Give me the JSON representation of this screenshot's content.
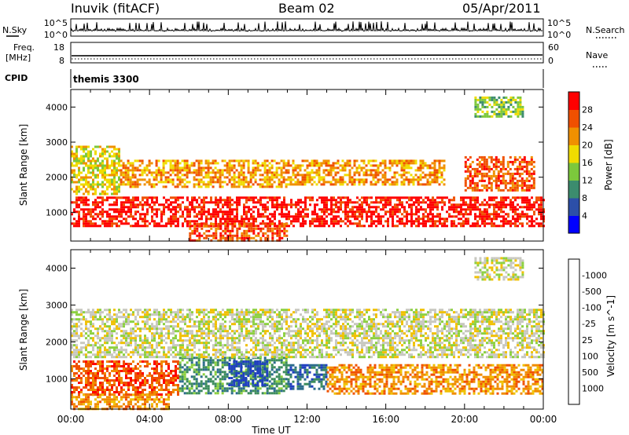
{
  "header": {
    "station": "Inuvik (fitACF)",
    "beam": "Beam 02",
    "date": "05/Apr/2011"
  },
  "top_panels": {
    "nsky_label": "N.Sky",
    "nsky_ticks": [
      "10^5",
      "10^0"
    ],
    "nsearch_label": "N.Search",
    "nsearch_ticks": [
      "10^5",
      "10^0"
    ],
    "freq_label": "Freq.",
    "freq_unit": "[MHz]",
    "freq_ticks": [
      "18",
      "8"
    ],
    "nave_label": "Nave",
    "nave_ticks": [
      "60",
      "0"
    ],
    "cpid_label": "CPID",
    "cpid_value": "themis 3300"
  },
  "x_axis": {
    "label": "Time UT",
    "ticks": [
      "00:00",
      "04:00",
      "08:00",
      "12:00",
      "16:00",
      "20:00",
      "00:00"
    ]
  },
  "chart_data": [
    {
      "type": "heatmap",
      "panel": "power",
      "xlabel": "Time UT",
      "ylabel": "Slant Range [km]",
      "xlim": [
        0,
        24
      ],
      "ylim": [
        180,
        4500
      ],
      "y_ticks": [
        1000,
        2000,
        3000,
        4000
      ],
      "colorbar_label": "Power [dB]",
      "colorbar_ticks": [
        "4",
        "8",
        "12",
        "16",
        "20",
        "24",
        "28"
      ],
      "colorbar_colors": [
        "#0000ff",
        "#2c4fa8",
        "#3c8c6e",
        "#7cc83c",
        "#f0dc00",
        "#f09000",
        "#f05000",
        "#ff0000"
      ],
      "bands": [
        {
          "t0": 0.0,
          "t1": 24.0,
          "r0": 600,
          "r1": 1450,
          "level": 7
        },
        {
          "t0": 0.0,
          "t1": 2.5,
          "r0": 1500,
          "r1": 2900,
          "level": 4
        },
        {
          "t0": 2.5,
          "t1": 11.0,
          "r0": 1700,
          "r1": 2500,
          "level": 5
        },
        {
          "t0": 11.0,
          "t1": 19.0,
          "r0": 1800,
          "r1": 2500,
          "level": 5
        },
        {
          "t0": 20.0,
          "t1": 23.5,
          "r0": 1600,
          "r1": 2600,
          "level": 6
        },
        {
          "t0": 6.0,
          "t1": 11.0,
          "r0": 200,
          "r1": 700,
          "level": 6
        },
        {
          "t0": 20.5,
          "t1": 23.0,
          "r0": 3700,
          "r1": 4300,
          "level": 3
        }
      ]
    },
    {
      "type": "heatmap",
      "panel": "velocity",
      "xlabel": "Time UT",
      "ylabel": "Slant Range [km]",
      "xlim": [
        0,
        24
      ],
      "ylim": [
        180,
        4500
      ],
      "y_ticks": [
        1000,
        2000,
        3000,
        4000
      ],
      "colorbar_label": "Velocity [m s^-1]",
      "colorbar_ticks": [
        "1000",
        "500",
        "100",
        "25",
        "-25",
        "-100",
        "-500",
        "-1000"
      ],
      "colorbar_colors": [
        "#2040c0",
        "#2c6c8c",
        "#3c8c5c",
        "#8cd040",
        "#c8c8c0",
        "#f0c000",
        "#f08c00",
        "#f05000",
        "#ff0000"
      ],
      "bands": [
        {
          "t0": 0.0,
          "t1": 5.5,
          "r0": 600,
          "r1": 1500,
          "level": 7
        },
        {
          "t0": 5.5,
          "t1": 11.0,
          "r0": 600,
          "r1": 1600,
          "level": 2
        },
        {
          "t0": 8.0,
          "t1": 10.0,
          "r0": 800,
          "r1": 1500,
          "level": 0
        },
        {
          "t0": 11.0,
          "t1": 13.0,
          "r0": 700,
          "r1": 1400,
          "level": 1
        },
        {
          "t0": 13.0,
          "t1": 24.0,
          "r0": 600,
          "r1": 1400,
          "level": 6
        },
        {
          "t0": 0.0,
          "t1": 24.0,
          "r0": 1600,
          "r1": 2900,
          "level": 4
        },
        {
          "t0": 0.0,
          "t1": 5.0,
          "r0": 200,
          "r1": 600,
          "level": 6
        },
        {
          "t0": 20.5,
          "t1": 23.0,
          "r0": 3700,
          "r1": 4300,
          "level": 4
        }
      ]
    }
  ]
}
